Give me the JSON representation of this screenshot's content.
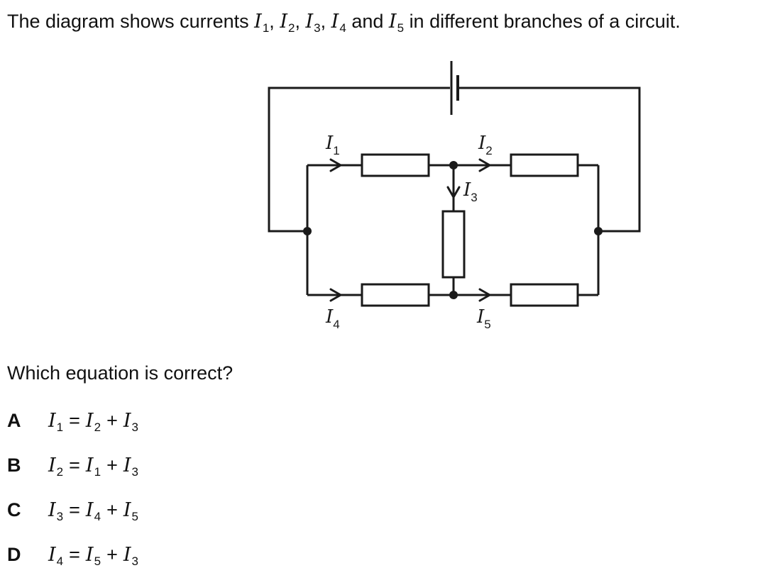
{
  "question": {
    "text_prefix": "The diagram shows currents",
    "text_suffix": "in different branches of a circuit.",
    "currents": [
      {
        "symbol": "I",
        "sub": "1"
      },
      {
        "symbol": "I",
        "sub": "2"
      },
      {
        "symbol": "I",
        "sub": "3"
      },
      {
        "symbol": "I",
        "sub": "4"
      },
      {
        "symbol": "I",
        "sub": "5"
      }
    ],
    "comma": ",",
    "and_word": "and"
  },
  "diagram": {
    "labels": {
      "i1": {
        "symbol": "I",
        "sub": "1"
      },
      "i2": {
        "symbol": "I",
        "sub": "2"
      },
      "i3": {
        "symbol": "I",
        "sub": "3"
      },
      "i4": {
        "symbol": "I",
        "sub": "4"
      },
      "i5": {
        "symbol": "I",
        "sub": "5"
      }
    }
  },
  "prompt": "Which equation is correct?",
  "options": [
    {
      "letter": "A",
      "lhs": {
        "symbol": "I",
        "sub": "1"
      },
      "eq": "=",
      "t1": {
        "symbol": "I",
        "sub": "2"
      },
      "plus": "+",
      "t2": {
        "symbol": "I",
        "sub": "3"
      }
    },
    {
      "letter": "B",
      "lhs": {
        "symbol": "I",
        "sub": "2"
      },
      "eq": "=",
      "t1": {
        "symbol": "I",
        "sub": "1"
      },
      "plus": "+",
      "t2": {
        "symbol": "I",
        "sub": "3"
      }
    },
    {
      "letter": "C",
      "lhs": {
        "symbol": "I",
        "sub": "3"
      },
      "eq": "=",
      "t1": {
        "symbol": "I",
        "sub": "4"
      },
      "plus": "+",
      "t2": {
        "symbol": "I",
        "sub": "5"
      }
    },
    {
      "letter": "D",
      "lhs": {
        "symbol": "I",
        "sub": "4"
      },
      "eq": "=",
      "t1": {
        "symbol": "I",
        "sub": "5"
      },
      "plus": "+",
      "t2": {
        "symbol": "I",
        "sub": "3"
      }
    }
  ]
}
